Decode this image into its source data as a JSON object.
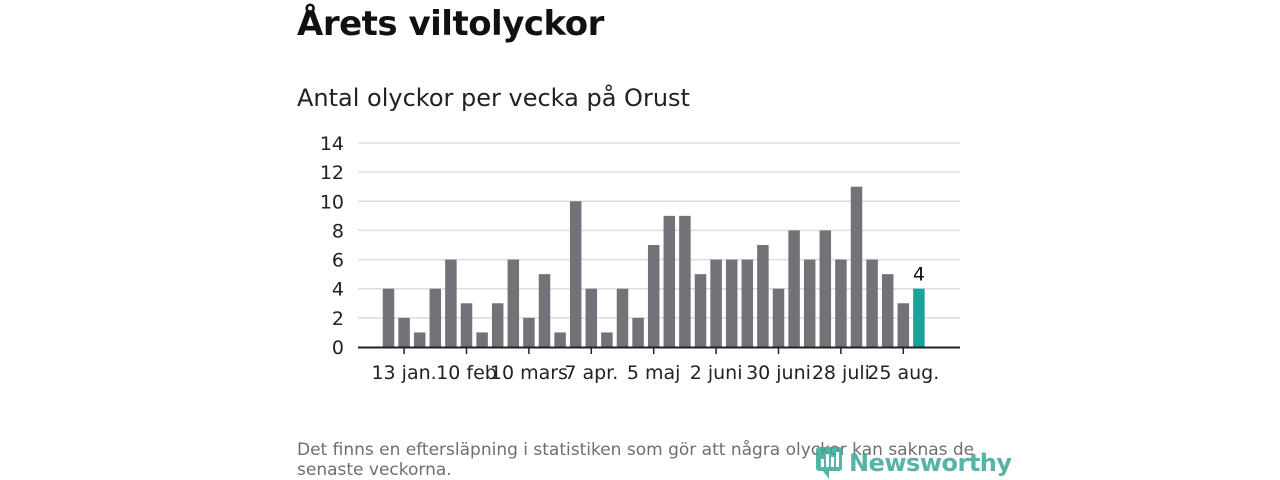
{
  "page": {
    "title": "Årets viltolyckor",
    "footnote": "Det finns en eftersläpning i statistiken som gör att några olyckor kan saknas de senaste veckorna.",
    "brand": "Newsworthy"
  },
  "colors": {
    "bar": "#737278",
    "highlight": "#1aa39a",
    "grid": "#dddddd",
    "axis": "#222222",
    "brand": "#3aa697"
  },
  "chart_data": {
    "type": "bar",
    "title": "Antal olyckor per vecka på Orust",
    "xlabel": "",
    "ylabel": "",
    "ylim": [
      0,
      14
    ],
    "yticks": [
      0,
      2,
      4,
      6,
      8,
      10,
      12,
      14
    ],
    "grid": true,
    "values": [
      4,
      2,
      1,
      4,
      6,
      3,
      1,
      3,
      6,
      2,
      5,
      1,
      10,
      4,
      1,
      4,
      2,
      7,
      9,
      9,
      5,
      6,
      6,
      6,
      7,
      4,
      8,
      6,
      8,
      6,
      11,
      6,
      5,
      3,
      4
    ],
    "highlight_index": 34,
    "highlight_label": "4",
    "x_tick_labels": [
      "13 jan.",
      "10 feb",
      "10 mars",
      "7 apr.",
      "5 maj",
      "2 juni",
      "30 juni",
      "28 juli",
      "25 aug."
    ],
    "x_tick_positions": [
      1,
      5,
      9,
      13,
      17,
      21,
      25,
      29,
      33
    ]
  }
}
